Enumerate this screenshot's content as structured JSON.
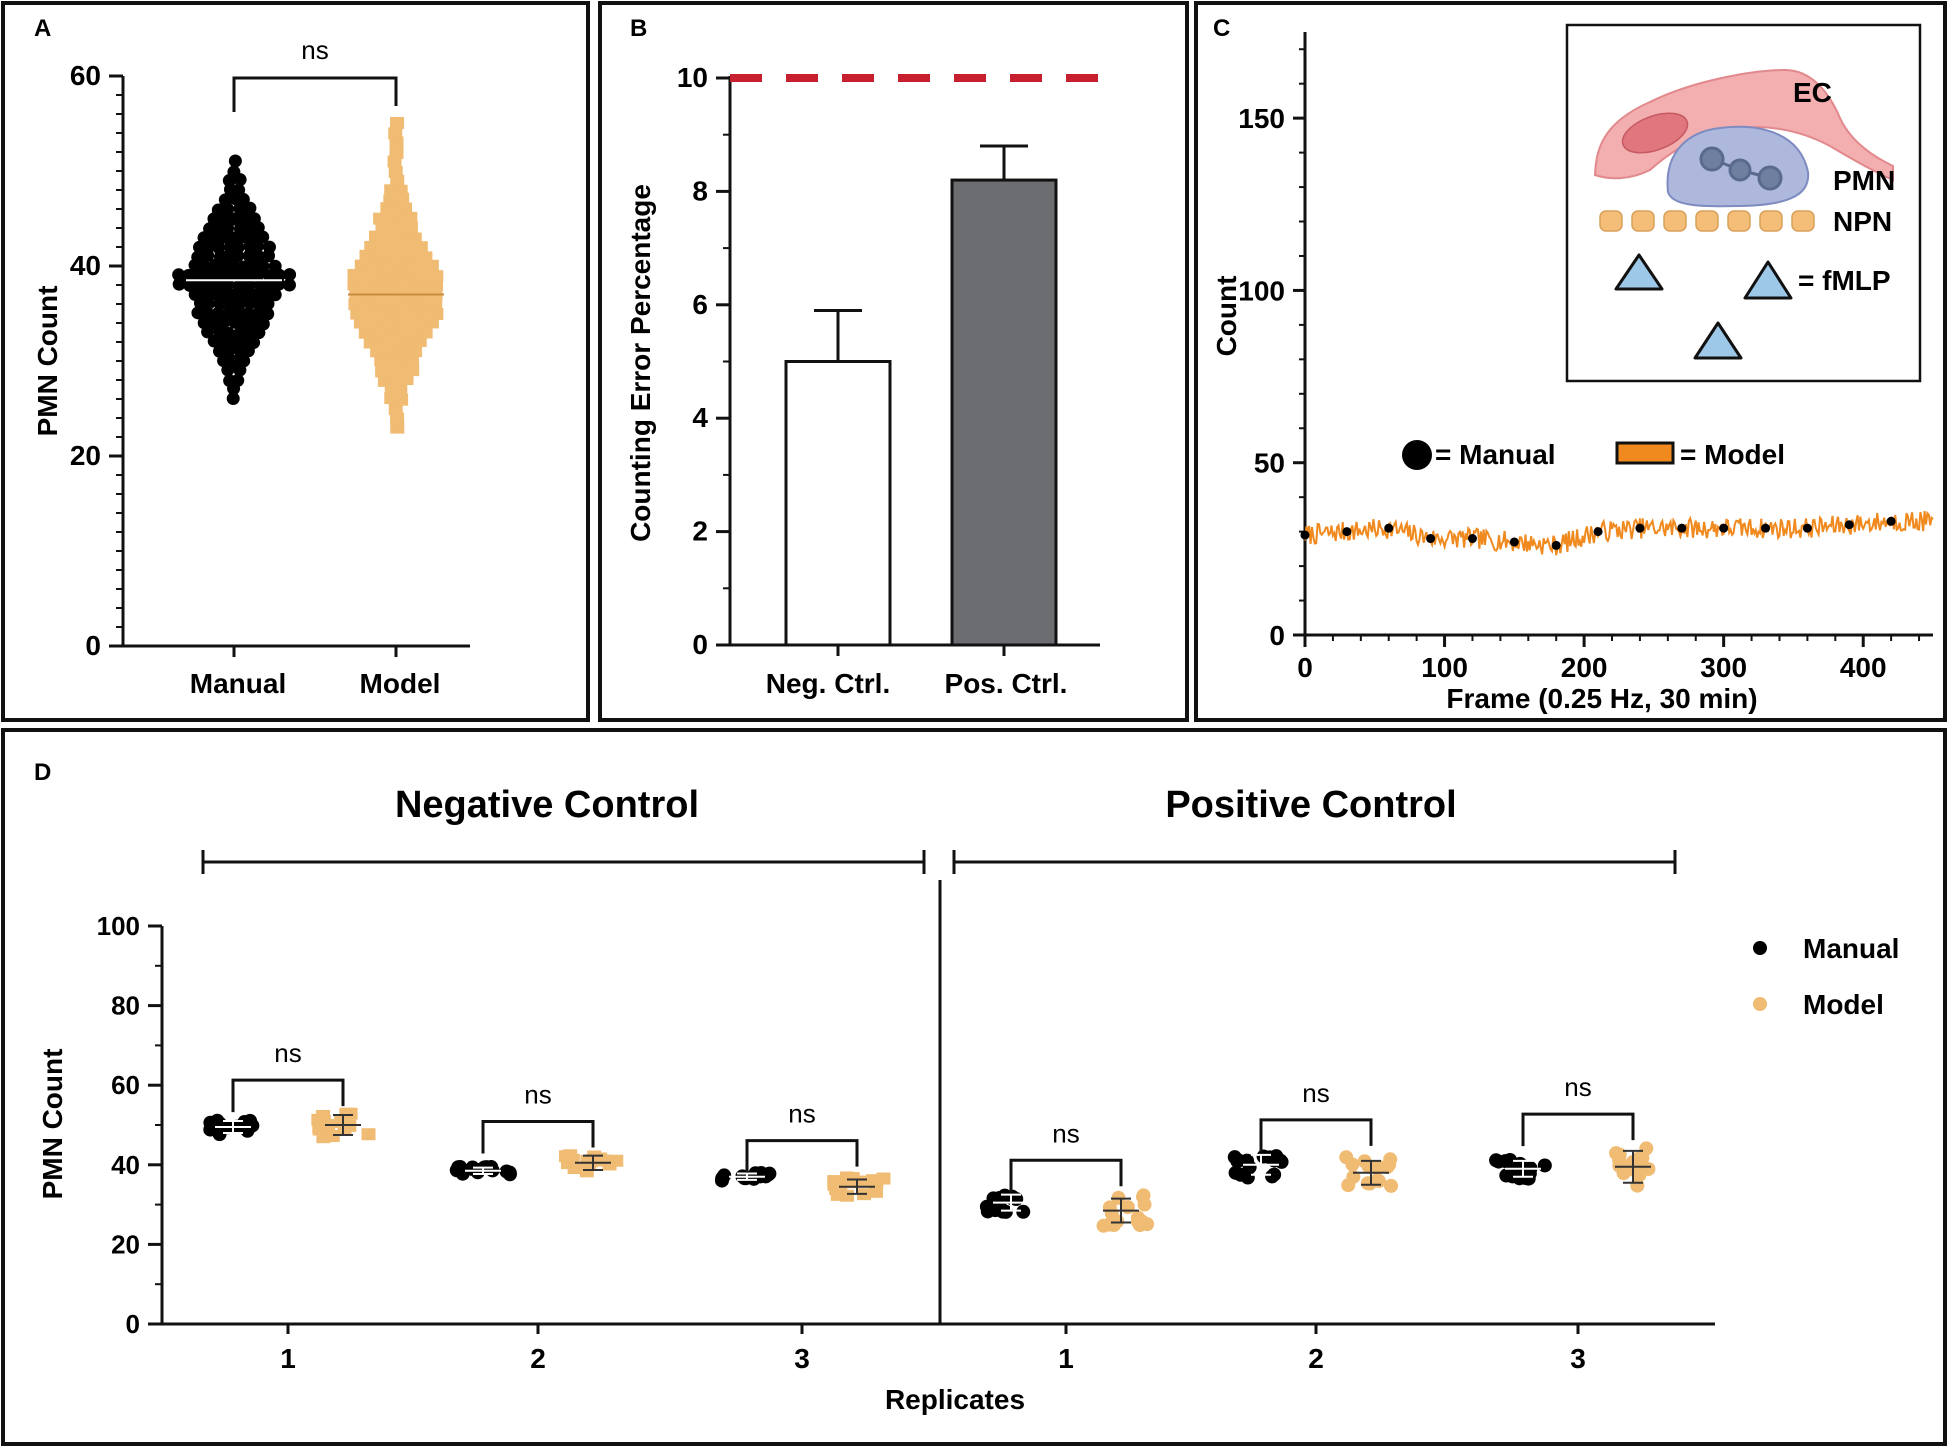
{
  "panel_labels": {
    "a": "A",
    "b": "B",
    "c": "C",
    "d": "D"
  },
  "colors": {
    "manual": "#000000",
    "model": "#F0BB72",
    "model_trace": "#F08A1F",
    "bar_neg": "#FFFFFF",
    "bar_pos": "#6C6D70",
    "threshold": "#C8202E",
    "frame": "#111111"
  },
  "chart_data": [
    {
      "panel": "A",
      "type": "scatter",
      "ylabel": "PMN Count",
      "categories": [
        "Manual",
        "Model"
      ],
      "ylim": [
        0,
        60
      ],
      "yticks": [
        0,
        20,
        40,
        60
      ],
      "significance": "ns",
      "series": [
        {
          "name": "Manual",
          "mean": 38.5,
          "min": 26,
          "max": 51
        },
        {
          "name": "Model",
          "mean": 37,
          "min": 23,
          "max": 55
        }
      ]
    },
    {
      "panel": "B",
      "type": "bar",
      "ylabel": "Counting Error Percentage",
      "categories": [
        "Neg. Ctrl.",
        "Pos. Ctrl."
      ],
      "values": [
        5.0,
        8.2
      ],
      "errors": [
        0.9,
        0.6
      ],
      "threshold": 10,
      "ylim": [
        0,
        10
      ],
      "yticks": [
        0,
        2,
        4,
        6,
        8,
        10
      ]
    },
    {
      "panel": "C",
      "type": "line",
      "xlabel": "Frame (0.25 Hz, 30 min)",
      "ylabel": "Count",
      "xlim": [
        0,
        450
      ],
      "ylim": [
        0,
        175
      ],
      "xticks": [
        0,
        100,
        200,
        300,
        400
      ],
      "yticks": [
        0,
        50,
        100,
        150
      ],
      "legend": {
        "manual": "= Manual",
        "model": "= Model"
      },
      "manual_points": {
        "x": [
          0,
          30,
          60,
          90,
          120,
          150,
          180,
          210,
          240,
          270,
          300,
          330,
          360,
          390,
          420
        ],
        "y": [
          29,
          30,
          31,
          28,
          28,
          27,
          26,
          30,
          31,
          31,
          31,
          31,
          31,
          32,
          33
        ]
      },
      "model_baseline": 29,
      "model_noise": 3,
      "inset": {
        "ec": "EC",
        "pmn": "PMN",
        "npn": "NPN",
        "fmlp": "= fMLP"
      }
    },
    {
      "panel": "D",
      "type": "scatter",
      "xlabel": "Replicates",
      "ylabel": "PMN Count",
      "ylim": [
        0,
        100
      ],
      "yticks": [
        0,
        20,
        40,
        60,
        80,
        100
      ],
      "groups": [
        "Negative Control",
        "Positive Control"
      ],
      "legend": [
        "Manual",
        "Model"
      ],
      "replicates": [
        {
          "group": "Negative Control",
          "label": "1",
          "manual_mean": 49.5,
          "manual_sd": 1.5,
          "model_mean": 50,
          "model_sd": 2.5,
          "sig": "ns"
        },
        {
          "group": "Negative Control",
          "label": "2",
          "manual_mean": 38.5,
          "manual_sd": 0.8,
          "model_mean": 40.5,
          "model_sd": 1.8,
          "sig": "ns"
        },
        {
          "group": "Negative Control",
          "label": "3",
          "manual_mean": 37,
          "manual_sd": 0.8,
          "model_mean": 34.5,
          "model_sd": 1.8,
          "sig": "ns"
        },
        {
          "group": "Positive Control",
          "label": "1",
          "manual_mean": 30.5,
          "manual_sd": 2,
          "model_mean": 28.5,
          "model_sd": 3,
          "sig": "ns"
        },
        {
          "group": "Positive Control",
          "label": "2",
          "manual_mean": 40,
          "manual_sd": 2.5,
          "model_mean": 38,
          "model_sd": 3,
          "sig": "ns"
        },
        {
          "group": "Positive Control",
          "label": "3",
          "manual_mean": 39,
          "manual_sd": 2,
          "model_mean": 39.5,
          "model_sd": 4,
          "sig": "ns"
        }
      ]
    }
  ]
}
